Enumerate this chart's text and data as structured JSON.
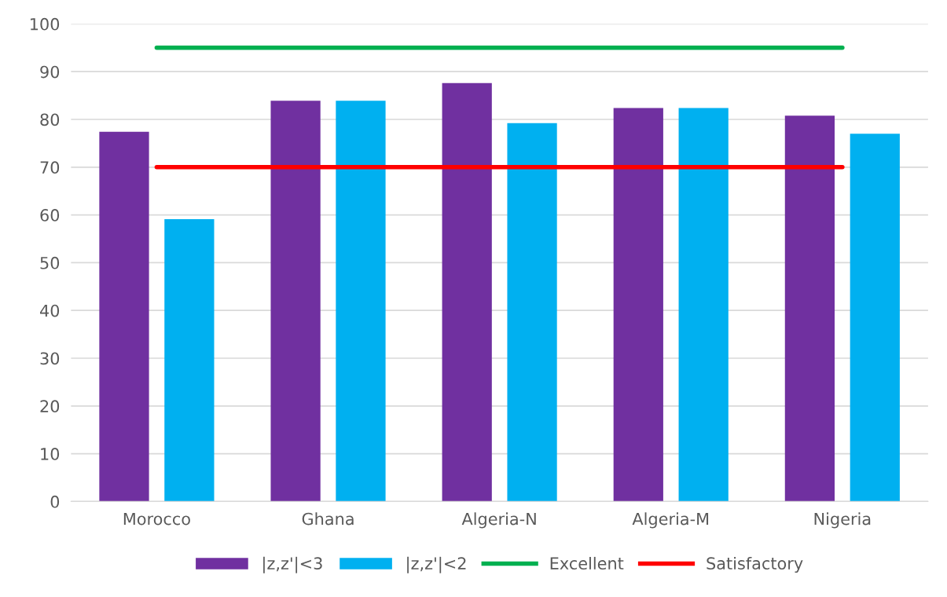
{
  "chart_data": {
    "type": "bar",
    "categories": [
      "Morocco",
      "Ghana",
      "Algeria-N",
      "Algeria-M",
      "Nigeria"
    ],
    "series": [
      {
        "name": "|z,z'|<3",
        "color": "#7030a0",
        "values": [
          77.4,
          83.9,
          87.6,
          82.4,
          80.8
        ]
      },
      {
        "name": "|z,z'|<2",
        "color": "#00b0f0",
        "values": [
          59.1,
          83.9,
          79.2,
          82.4,
          77.0
        ]
      },
      {
        "name": "Excellent",
        "type": "line",
        "color": "#00b050",
        "values": [
          95,
          95,
          95,
          95,
          95
        ]
      },
      {
        "name": "Satisfactory",
        "type": "line",
        "color": "#ff0000",
        "values": [
          70,
          70,
          70,
          70,
          70
        ]
      }
    ],
    "ylim": [
      0,
      100
    ],
    "yticks": [
      0,
      10,
      20,
      30,
      40,
      50,
      60,
      70,
      80,
      90,
      100
    ],
    "grid": "y",
    "legend": "bottom",
    "marker": "none",
    "line_style": "solid"
  }
}
